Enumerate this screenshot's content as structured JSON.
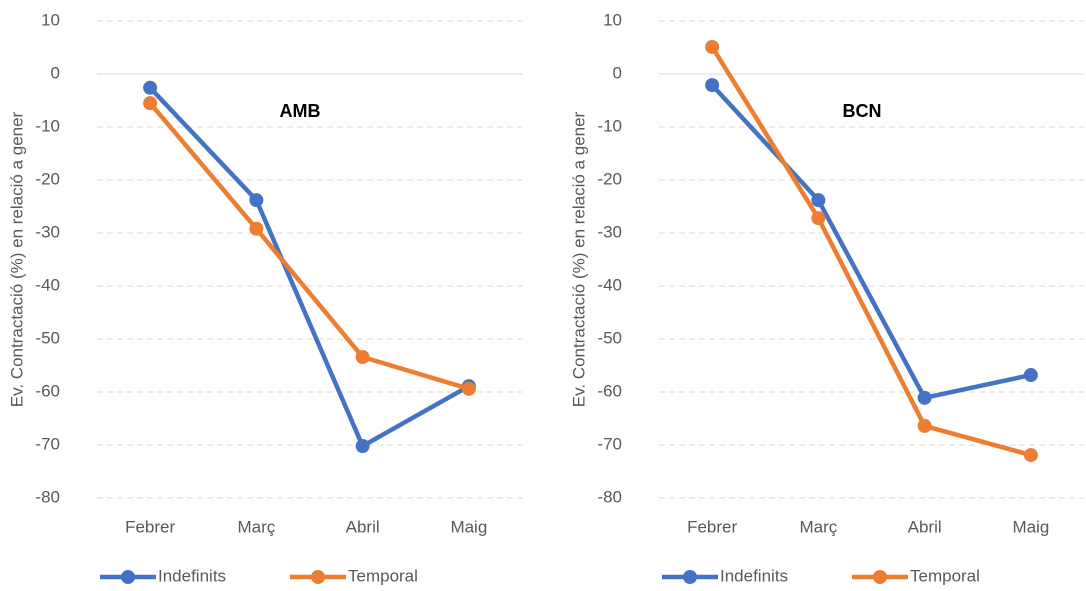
{
  "chart_data": [
    {
      "type": "line",
      "title": "AMB",
      "y_label": "Ev. Contractació (%) en relació a gener",
      "categories": [
        "Febrer",
        "Març",
        "Abril",
        "Maig"
      ],
      "series": [
        {
          "name": "Indefinits",
          "color": "#4472c4",
          "values": [
            -2.6,
            -23.8,
            -70.2,
            -58.9
          ]
        },
        {
          "name": "Temporal",
          "color": "#ed7d31",
          "values": [
            -5.5,
            -29.2,
            -53.4,
            -59.4
          ]
        }
      ],
      "ylim": [
        -80,
        10
      ],
      "yticks": [
        -80,
        -70,
        -60,
        -50,
        -40,
        -30,
        -20,
        -10,
        0,
        10
      ],
      "grid": true,
      "legend": "bottom"
    },
    {
      "type": "line",
      "title": "BCN",
      "y_label": "Ev. Contractació (%) en relació a gener",
      "categories": [
        "Febrer",
        "Març",
        "Abril",
        "Maig"
      ],
      "series": [
        {
          "name": "Indefinits",
          "color": "#4472c4",
          "values": [
            -2.1,
            -23.8,
            -61.1,
            -56.8
          ]
        },
        {
          "name": "Temporal",
          "color": "#ed7d31",
          "values": [
            5.1,
            -27.2,
            -66.4,
            -71.9
          ]
        }
      ],
      "ylim": [
        -80,
        10
      ],
      "yticks": [
        -80,
        -70,
        -60,
        -50,
        -40,
        -30,
        -20,
        -10,
        0,
        10
      ],
      "grid": true,
      "legend": "bottom"
    }
  ]
}
